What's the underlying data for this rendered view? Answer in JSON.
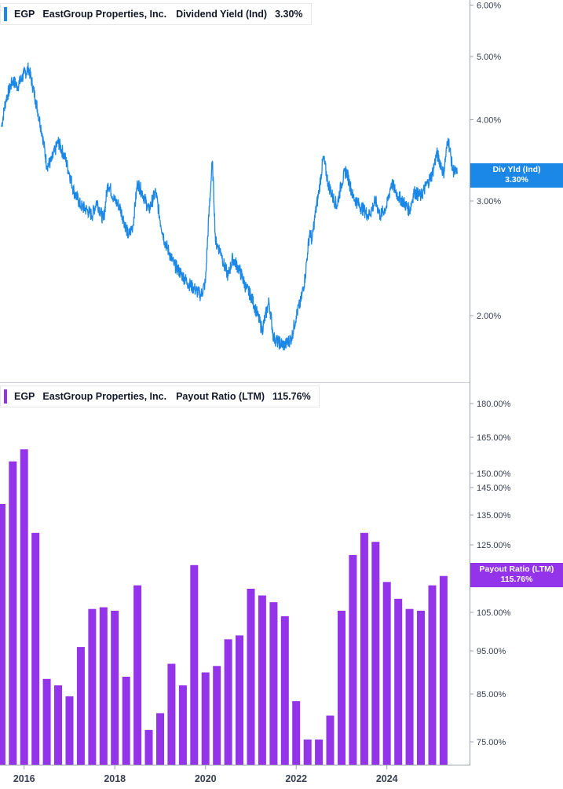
{
  "colors": {
    "yield": "#1b87e6",
    "payout": "#9333ea",
    "axis": "#9ca3af",
    "text": "#374151"
  },
  "top_legend": {
    "ticker": "EGP",
    "company": "EastGroup Properties, Inc.",
    "metric": "Dividend Yield (Ind)",
    "value": "3.30%"
  },
  "bottom_legend": {
    "ticker": "EGP",
    "company": "EastGroup Properties, Inc.",
    "metric": "Payout Ratio (LTM)",
    "value": "115.76%"
  },
  "top_tag": {
    "label": "Div Yld (Ind)",
    "value": "3.30%"
  },
  "bottom_tag": {
    "label": "Payout Ratio (LTM)",
    "value": "115.76%"
  },
  "chart_data": [
    {
      "type": "line",
      "series": [
        {
          "name": "Dividend Yield (Ind)"
        }
      ],
      "scale": "log",
      "y_ticks": [
        "6.00%",
        "5.00%",
        "4.00%",
        "3.00%",
        "2.00%"
      ],
      "y_tick_values": [
        6.0,
        5.0,
        4.0,
        3.0,
        2.0
      ],
      "x": [
        2015.5,
        2015.6,
        2015.75,
        2015.85,
        2016.0,
        2016.1,
        2016.25,
        2016.4,
        2016.5,
        2016.6,
        2016.75,
        2016.9,
        2017.0,
        2017.1,
        2017.25,
        2017.4,
        2017.5,
        2017.6,
        2017.75,
        2017.85,
        2018.0,
        2018.1,
        2018.2,
        2018.3,
        2018.4,
        2018.5,
        2018.6,
        2018.75,
        2018.9,
        2019.0,
        2019.1,
        2019.2,
        2019.3,
        2019.4,
        2019.5,
        2019.6,
        2019.75,
        2019.9,
        2020.0,
        2020.15,
        2020.22,
        2020.28,
        2020.35,
        2020.4,
        2020.5,
        2020.6,
        2020.75,
        2020.9,
        2021.0,
        2021.15,
        2021.25,
        2021.4,
        2021.5,
        2021.6,
        2021.75,
        2021.9,
        2022.0,
        2022.1,
        2022.2,
        2022.25,
        2022.3,
        2022.35,
        2022.4,
        2022.5,
        2022.6,
        2022.7,
        2022.8,
        2022.9,
        2023.0,
        2023.1,
        2023.25,
        2023.4,
        2023.5,
        2023.6,
        2023.75,
        2023.85,
        2024.0,
        2024.1,
        2024.25,
        2024.35,
        2024.5,
        2024.6,
        2024.75,
        2024.9,
        2025.0,
        2025.1,
        2025.2,
        2025.25,
        2025.35,
        2025.45,
        2025.55
      ],
      "values": [
        3.9,
        4.3,
        4.6,
        4.5,
        4.7,
        4.8,
        4.3,
        3.8,
        3.4,
        3.45,
        3.7,
        3.5,
        3.3,
        3.1,
        2.95,
        2.9,
        2.85,
        3.0,
        2.8,
        3.2,
        3.0,
        2.95,
        2.8,
        2.65,
        2.75,
        3.2,
        3.1,
        2.9,
        3.1,
        2.8,
        2.6,
        2.5,
        2.4,
        2.35,
        2.3,
        2.25,
        2.2,
        2.15,
        2.25,
        3.45,
        2.6,
        2.55,
        2.5,
        2.4,
        2.3,
        2.45,
        2.35,
        2.2,
        2.15,
        2.0,
        1.9,
        2.1,
        1.85,
        1.82,
        1.8,
        1.85,
        2.0,
        2.1,
        2.3,
        2.5,
        2.7,
        2.6,
        2.8,
        3.1,
        3.5,
        3.2,
        3.05,
        2.95,
        3.2,
        3.35,
        3.05,
        2.95,
        2.9,
        2.85,
        3.0,
        2.85,
        2.95,
        3.2,
        3.05,
        3.0,
        2.9,
        3.1,
        3.05,
        3.2,
        3.3,
        3.55,
        3.4,
        3.3,
        3.75,
        3.35,
        3.3
      ],
      "x_ticks": [
        "2016",
        "2018",
        "2020",
        "2022",
        "2024"
      ],
      "x_tick_values": [
        2016,
        2018,
        2020,
        2022,
        2024
      ]
    },
    {
      "type": "bar",
      "series": [
        {
          "name": "Payout Ratio (LTM)"
        }
      ],
      "y_ticks": [
        "180.00%",
        "165.00%",
        "150.00%",
        "145.00%",
        "135.00%",
        "125.00%",
        "105.00%",
        "95.00%",
        "85.00%",
        "75.00%"
      ],
      "y_tick_values": [
        180,
        165,
        150,
        145,
        135,
        125,
        105,
        95,
        85,
        75
      ],
      "x": [
        2015.5,
        2015.75,
        2016.0,
        2016.25,
        2016.5,
        2016.75,
        2017.0,
        2017.25,
        2017.5,
        2017.75,
        2018.0,
        2018.25,
        2018.5,
        2018.75,
        2019.0,
        2019.25,
        2019.5,
        2019.75,
        2020.0,
        2020.25,
        2020.5,
        2020.75,
        2021.0,
        2021.25,
        2021.5,
        2021.75,
        2022.0,
        2022.25,
        2022.5,
        2022.75,
        2023.0,
        2023.25,
        2023.5,
        2023.75,
        2024.0,
        2024.25,
        2024.5,
        2024.75,
        2025.0,
        2025.25
      ],
      "values": [
        139,
        155,
        160,
        129,
        88.5,
        87,
        84.5,
        96,
        106,
        106.5,
        105.5,
        89,
        113,
        77.5,
        81,
        92,
        87,
        119,
        90,
        91.5,
        98,
        99,
        112,
        110,
        108,
        104,
        83.5,
        75.5,
        75.5,
        80.5,
        105.5,
        122,
        129,
        126,
        114,
        109,
        106,
        105.5,
        113,
        115.76
      ]
    }
  ]
}
